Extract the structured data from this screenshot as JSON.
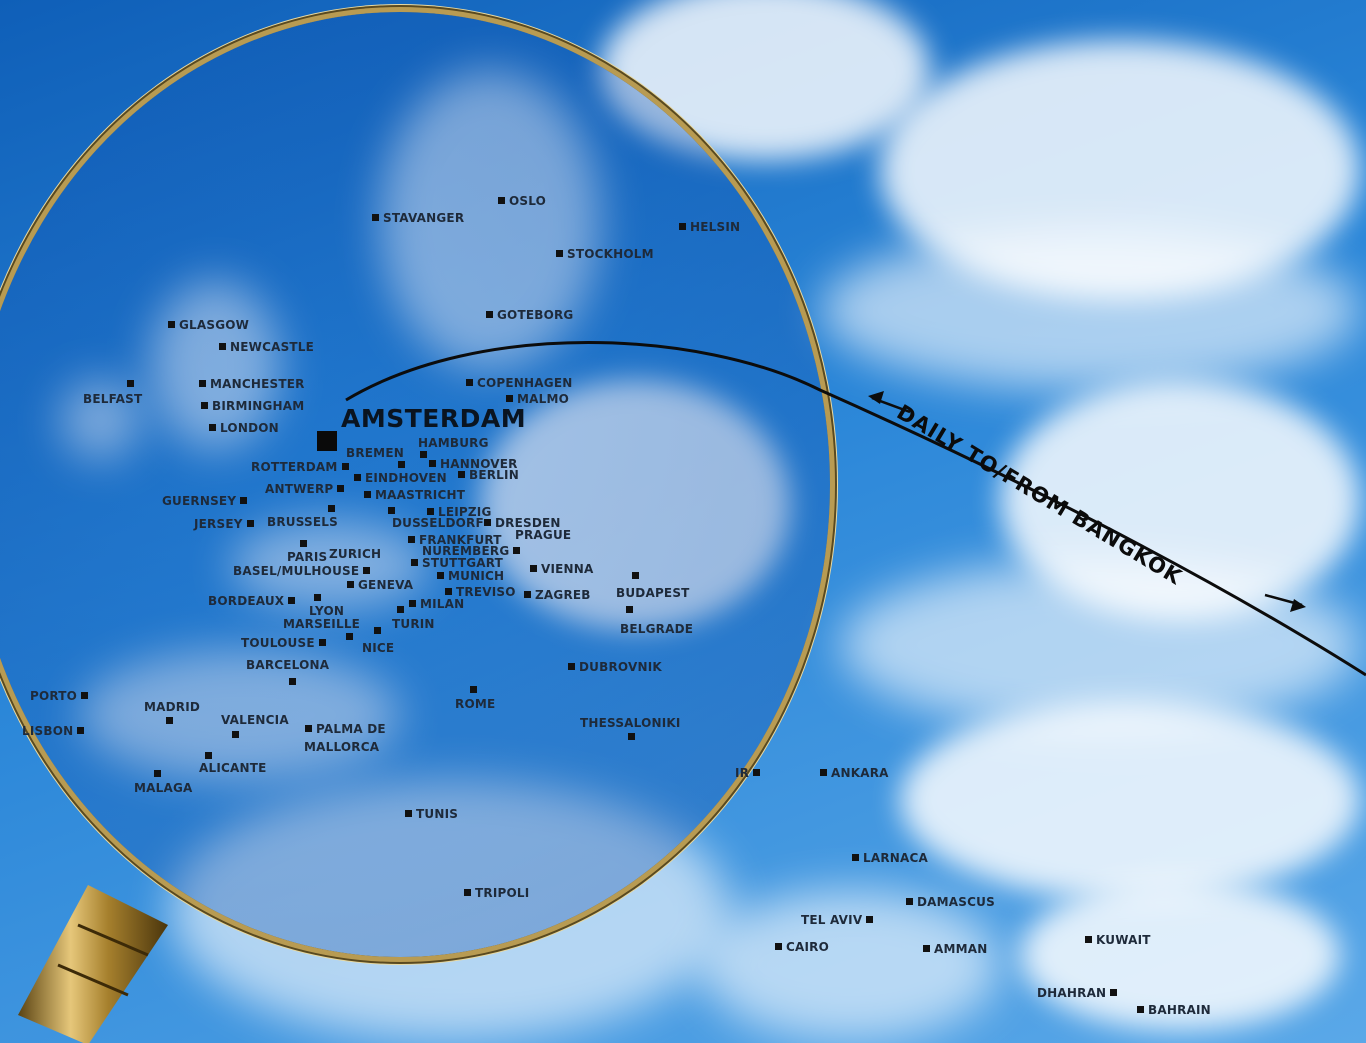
{
  "hub": {
    "name": "AMSTERDAM"
  },
  "route": {
    "label": "DAILY TO/FROM BANGKOK"
  },
  "colors": {
    "sky": "#1a6fc4",
    "cloud": "#ffffff",
    "lens_rim": "#b89b52",
    "text": "#1e2a3a"
  },
  "icons": {
    "lens": "magnifying-glass-icon",
    "marker": "square-marker-icon"
  },
  "cities": [
    {
      "name": "OSLO"
    },
    {
      "name": "STAVANGER"
    },
    {
      "name": "HELSIN"
    },
    {
      "name": "STOCKHOLM"
    },
    {
      "name": "GOTEBORG"
    },
    {
      "name": "GLASGOW"
    },
    {
      "name": "NEWCASTLE"
    },
    {
      "name": "BELFAST"
    },
    {
      "name": "MANCHESTER"
    },
    {
      "name": "BIRMINGHAM"
    },
    {
      "name": "LONDON"
    },
    {
      "name": "COPENHAGEN"
    },
    {
      "name": "MALMO"
    },
    {
      "name": "HAMBURG"
    },
    {
      "name": "BREMEN"
    },
    {
      "name": "HANNOVER"
    },
    {
      "name": "BERLIN"
    },
    {
      "name": "ROTTERDAM"
    },
    {
      "name": "EINDHOVEN"
    },
    {
      "name": "ANTWERP"
    },
    {
      "name": "MAASTRICHT"
    },
    {
      "name": "GUERNSEY"
    },
    {
      "name": "LEIPZIG"
    },
    {
      "name": "DUSSELDORF"
    },
    {
      "name": "DRESDEN"
    },
    {
      "name": "JERSEY"
    },
    {
      "name": "BRUSSELS"
    },
    {
      "name": "PRAGUE"
    },
    {
      "name": "FRANKFURT"
    },
    {
      "name": "NUREMBERG"
    },
    {
      "name": "PARIS"
    },
    {
      "name": "ZURICH"
    },
    {
      "name": "STUTTGART"
    },
    {
      "name": "BASEL/MULHOUSE"
    },
    {
      "name": "VIENNA"
    },
    {
      "name": "MUNICH"
    },
    {
      "name": "GENEVA"
    },
    {
      "name": "BUDAPEST"
    },
    {
      "name": "TREVISO"
    },
    {
      "name": "ZAGREB"
    },
    {
      "name": "BORDEAUX"
    },
    {
      "name": "MILAN"
    },
    {
      "name": "LYON"
    },
    {
      "name": "MARSEILLE"
    },
    {
      "name": "TURIN"
    },
    {
      "name": "BELGRADE"
    },
    {
      "name": "TOULOUSE"
    },
    {
      "name": "NICE"
    },
    {
      "name": "BARCELONA"
    },
    {
      "name": "DUBROVNIK"
    },
    {
      "name": "PORTO"
    },
    {
      "name": "ROME"
    },
    {
      "name": "MADRID"
    },
    {
      "name": "VALENCIA"
    },
    {
      "name": "PALMA DE"
    },
    {
      "name": "MALLORCA"
    },
    {
      "name": "THESSALONIKI"
    },
    {
      "name": "LISBON"
    },
    {
      "name": "ALICANTE"
    },
    {
      "name": "MALAGA"
    },
    {
      "name": "IR"
    },
    {
      "name": "ANKARA"
    },
    {
      "name": "TUNIS"
    },
    {
      "name": "LARNACA"
    },
    {
      "name": "TRIPOLI"
    },
    {
      "name": "DAMASCUS"
    },
    {
      "name": "TEL AVIV"
    },
    {
      "name": "CAIRO"
    },
    {
      "name": "AMMAN"
    },
    {
      "name": "KUWAIT"
    },
    {
      "name": "DHAHRAN"
    },
    {
      "name": "BAHRAIN"
    }
  ]
}
